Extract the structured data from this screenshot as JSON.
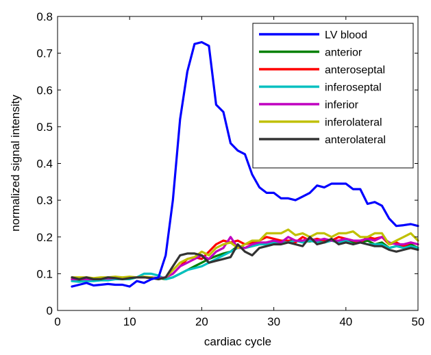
{
  "chart_data": {
    "type": "line",
    "title": "",
    "xlabel": "cardiac cycle",
    "ylabel": "normalized signal intensity",
    "xlim": [
      0,
      50
    ],
    "ylim": [
      0,
      0.8
    ],
    "xticks": [
      0,
      10,
      20,
      30,
      40,
      50
    ],
    "xtick_labels": [
      "0",
      "10",
      "20",
      "30",
      "40",
      "50"
    ],
    "yticks": [
      0,
      0.1,
      0.2,
      0.3,
      0.4,
      0.5,
      0.6,
      0.7,
      0.8
    ],
    "ytick_labels": [
      "0",
      "0.1",
      "0.2",
      "0.3",
      "0.4",
      "0.5",
      "0.6",
      "0.7",
      "0.8"
    ],
    "grid": false,
    "legend_position": "top-right",
    "x": [
      2,
      3,
      4,
      5,
      6,
      7,
      8,
      9,
      10,
      11,
      12,
      13,
      14,
      15,
      16,
      17,
      18,
      19,
      20,
      21,
      22,
      23,
      24,
      25,
      26,
      27,
      28,
      29,
      30,
      31,
      32,
      33,
      34,
      35,
      36,
      37,
      38,
      39,
      40,
      41,
      42,
      43,
      44,
      45,
      46,
      47,
      48,
      49,
      50
    ],
    "series": [
      {
        "name": "LV blood",
        "color": "#0000ff",
        "values": [
          0.065,
          0.07,
          0.075,
          0.068,
          0.07,
          0.072,
          0.07,
          0.07,
          0.065,
          0.08,
          0.075,
          0.085,
          0.09,
          0.15,
          0.3,
          0.52,
          0.65,
          0.725,
          0.73,
          0.72,
          0.56,
          0.54,
          0.455,
          0.435,
          0.425,
          0.37,
          0.335,
          0.32,
          0.32,
          0.305,
          0.305,
          0.3,
          0.31,
          0.32,
          0.34,
          0.335,
          0.345,
          0.345,
          0.345,
          0.33,
          0.33,
          0.29,
          0.295,
          0.285,
          0.25,
          0.23,
          0.232,
          0.235,
          0.23
        ]
      },
      {
        "name": "anterior",
        "color": "#008000",
        "values": [
          0.085,
          0.08,
          0.085,
          0.082,
          0.085,
          0.085,
          0.087,
          0.088,
          0.088,
          0.09,
          0.09,
          0.09,
          0.088,
          0.085,
          0.09,
          0.1,
          0.11,
          0.12,
          0.13,
          0.14,
          0.148,
          0.155,
          0.16,
          0.175,
          0.17,
          0.175,
          0.18,
          0.185,
          0.19,
          0.19,
          0.19,
          0.19,
          0.188,
          0.188,
          0.19,
          0.185,
          0.19,
          0.185,
          0.19,
          0.185,
          0.185,
          0.19,
          0.18,
          0.185,
          0.17,
          0.175,
          0.175,
          0.18,
          0.17
        ]
      },
      {
        "name": "anteroseptal",
        "color": "#ff0000",
        "values": [
          0.085,
          0.085,
          0.085,
          0.087,
          0.085,
          0.088,
          0.09,
          0.088,
          0.09,
          0.09,
          0.09,
          0.088,
          0.087,
          0.09,
          0.1,
          0.12,
          0.14,
          0.145,
          0.14,
          0.16,
          0.18,
          0.19,
          0.185,
          0.19,
          0.18,
          0.185,
          0.19,
          0.2,
          0.195,
          0.19,
          0.19,
          0.185,
          0.2,
          0.19,
          0.195,
          0.19,
          0.19,
          0.2,
          0.195,
          0.19,
          0.185,
          0.2,
          0.195,
          0.2,
          0.18,
          0.185,
          0.175,
          0.185,
          0.18
        ]
      },
      {
        "name": "inferoseptal",
        "color": "#00c0c0",
        "values": [
          0.08,
          0.078,
          0.08,
          0.08,
          0.082,
          0.082,
          0.085,
          0.085,
          0.085,
          0.09,
          0.1,
          0.1,
          0.095,
          0.085,
          0.09,
          0.1,
          0.11,
          0.115,
          0.12,
          0.13,
          0.14,
          0.15,
          0.16,
          0.17,
          0.17,
          0.175,
          0.18,
          0.18,
          0.185,
          0.185,
          0.185,
          0.19,
          0.185,
          0.19,
          0.185,
          0.185,
          0.19,
          0.185,
          0.19,
          0.18,
          0.185,
          0.18,
          0.18,
          0.18,
          0.17,
          0.175,
          0.17,
          0.175,
          0.17
        ]
      },
      {
        "name": "inferior",
        "color": "#c000c0",
        "values": [
          0.085,
          0.085,
          0.085,
          0.085,
          0.087,
          0.087,
          0.088,
          0.088,
          0.09,
          0.09,
          0.09,
          0.09,
          0.088,
          0.09,
          0.1,
          0.12,
          0.13,
          0.14,
          0.15,
          0.14,
          0.16,
          0.17,
          0.2,
          0.17,
          0.17,
          0.18,
          0.185,
          0.185,
          0.19,
          0.185,
          0.2,
          0.19,
          0.19,
          0.195,
          0.19,
          0.195,
          0.19,
          0.19,
          0.195,
          0.19,
          0.19,
          0.195,
          0.19,
          0.2,
          0.185,
          0.18,
          0.18,
          0.185,
          0.18
        ]
      },
      {
        "name": "inferolateral",
        "color": "#c0c000",
        "values": [
          0.09,
          0.09,
          0.09,
          0.088,
          0.09,
          0.09,
          0.092,
          0.09,
          0.092,
          0.09,
          0.092,
          0.09,
          0.085,
          0.09,
          0.11,
          0.13,
          0.14,
          0.145,
          0.16,
          0.15,
          0.17,
          0.18,
          0.185,
          0.17,
          0.18,
          0.19,
          0.19,
          0.21,
          0.21,
          0.21,
          0.22,
          0.205,
          0.21,
          0.2,
          0.21,
          0.21,
          0.2,
          0.21,
          0.21,
          0.215,
          0.2,
          0.2,
          0.21,
          0.21,
          0.18,
          0.19,
          0.2,
          0.21,
          0.19
        ]
      },
      {
        "name": "anterolateral",
        "color": "#333333",
        "values": [
          0.09,
          0.085,
          0.09,
          0.085,
          0.085,
          0.09,
          0.088,
          0.085,
          0.088,
          0.09,
          0.09,
          0.088,
          0.085,
          0.09,
          0.12,
          0.15,
          0.155,
          0.155,
          0.15,
          0.13,
          0.135,
          0.14,
          0.145,
          0.18,
          0.16,
          0.15,
          0.17,
          0.175,
          0.18,
          0.18,
          0.185,
          0.18,
          0.175,
          0.2,
          0.18,
          0.185,
          0.195,
          0.18,
          0.185,
          0.18,
          0.185,
          0.18,
          0.175,
          0.175,
          0.165,
          0.16,
          0.165,
          0.17,
          0.165
        ]
      }
    ]
  }
}
